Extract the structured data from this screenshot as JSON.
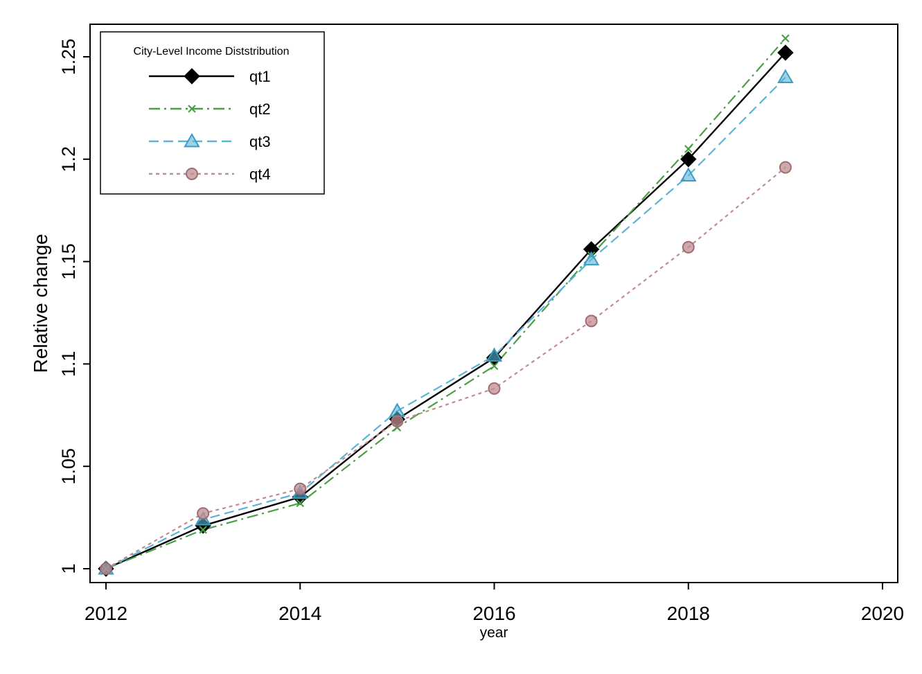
{
  "chart_data": {
    "type": "line",
    "xlabel": "year",
    "ylabel": "Relative change",
    "xlim": [
      2012,
      2020
    ],
    "ylim": [
      1,
      1.25
    ],
    "xticks": [
      2012,
      2014,
      2016,
      2018,
      2020
    ],
    "yticks": [
      1,
      1.05,
      1.1,
      1.15,
      1.2,
      1.25
    ],
    "ytick_labels": [
      "1",
      "1.05",
      "1.1",
      "1.15",
      "1.2",
      "1.25"
    ],
    "grid": false,
    "legend": {
      "title": "City-Level Income Diststribution",
      "position": "top-left"
    },
    "x": [
      2012,
      2013,
      2014,
      2015,
      2016,
      2017,
      2018,
      2019
    ],
    "series": [
      {
        "name": "qt1",
        "color": "#000000",
        "marker": "diamond",
        "line": "solid",
        "values": [
          1.0,
          1.021,
          1.035,
          1.073,
          1.103,
          1.156,
          1.2,
          1.252
        ]
      },
      {
        "name": "qt2",
        "color": "#4a9e46",
        "marker": "x",
        "line": "dash-dot",
        "values": [
          1.0,
          1.019,
          1.032,
          1.069,
          1.099,
          1.153,
          1.205,
          1.259
        ]
      },
      {
        "name": "qt3",
        "color": "#5ab4d6",
        "marker": "triangle",
        "line": "dashed",
        "values": [
          1.0,
          1.024,
          1.037,
          1.077,
          1.104,
          1.151,
          1.192,
          1.24
        ]
      },
      {
        "name": "qt4",
        "color": "#c08c92",
        "marker": "circle",
        "line": "dotted",
        "values": [
          1.0,
          1.027,
          1.039,
          1.072,
          1.088,
          1.121,
          1.157,
          1.196
        ]
      }
    ]
  }
}
